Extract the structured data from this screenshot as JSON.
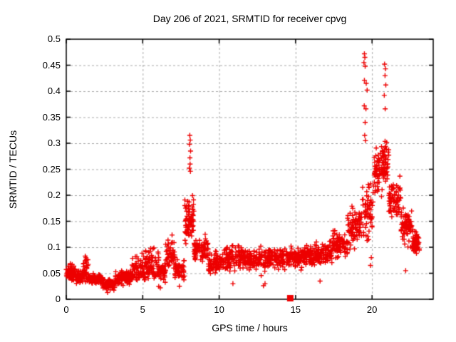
{
  "title": "Day 206 of 2021, SRMTID for receiver cpvg",
  "chart_data": {
    "type": "scatter",
    "title": "Day 206 of 2021, SRMTID for receiver cpvg",
    "xlabel": "GPS time / hours",
    "ylabel": "SRMTID / TECUs",
    "xlim": [
      0,
      24
    ],
    "ylim": [
      0,
      0.5
    ],
    "xticks": {
      "values": [
        0,
        5,
        10,
        15,
        20
      ],
      "labels": [
        "0",
        "5",
        "10",
        "15",
        "20"
      ]
    },
    "yticks": {
      "values": [
        0,
        0.05,
        0.1,
        0.15,
        0.2,
        0.25,
        0.3,
        0.35,
        0.4,
        0.45,
        0.5
      ],
      "labels": [
        "0",
        "0.05",
        "0.1",
        "0.15",
        "0.2",
        "0.25",
        "0.3",
        "0.35",
        "0.4",
        "0.45",
        "0.5"
      ]
    },
    "grid": true,
    "legend": "none",
    "marker": "plus",
    "marker_color": "#ed0000",
    "grid_color": "#a8a8a8",
    "border_color": "#000000",
    "series_name": "SRMTID",
    "cloud_segments": [
      {
        "x0": 0.0,
        "x1": 0.6,
        "n": 70,
        "yc": 0.05,
        "ys": 0.018,
        "ymin": 0.02,
        "ymax": 0.095
      },
      {
        "x0": 0.6,
        "x1": 1.1,
        "n": 50,
        "yc": 0.043,
        "ys": 0.013,
        "ymin": 0.02,
        "ymax": 0.08
      },
      {
        "x0": 1.1,
        "x1": 1.45,
        "n": 40,
        "yc": 0.058,
        "ys": 0.026,
        "ymin": 0.025,
        "ymax": 0.128
      },
      {
        "x0": 1.45,
        "x1": 2.4,
        "n": 85,
        "yc": 0.037,
        "ys": 0.011,
        "ymin": 0.015,
        "ymax": 0.07
      },
      {
        "x0": 2.4,
        "x1": 3.2,
        "n": 75,
        "yc": 0.028,
        "ys": 0.01,
        "ymin": 0.012,
        "ymax": 0.055
      },
      {
        "x0": 3.2,
        "x1": 4.3,
        "n": 95,
        "yc": 0.042,
        "ys": 0.014,
        "ymin": 0.018,
        "ymax": 0.09
      },
      {
        "x0": 4.3,
        "x1": 4.95,
        "n": 55,
        "yc": 0.058,
        "ys": 0.026,
        "ymin": 0.02,
        "ymax": 0.14
      },
      {
        "x0": 4.95,
        "x1": 5.45,
        "n": 48,
        "yc": 0.062,
        "ys": 0.032,
        "ymin": 0.02,
        "ymax": 0.168
      },
      {
        "x0": 5.45,
        "x1": 6.05,
        "n": 52,
        "yc": 0.068,
        "ys": 0.033,
        "ymin": 0.02,
        "ymax": 0.165
      },
      {
        "x0": 6.05,
        "x1": 6.5,
        "n": 40,
        "yc": 0.052,
        "ys": 0.02,
        "ymin": 0.02,
        "ymax": 0.12
      },
      {
        "x0": 6.5,
        "x1": 7.1,
        "n": 52,
        "yc": 0.09,
        "ys": 0.036,
        "ymin": 0.03,
        "ymax": 0.19
      },
      {
        "x0": 7.1,
        "x1": 7.75,
        "n": 52,
        "yc": 0.057,
        "ys": 0.023,
        "ymin": 0.022,
        "ymax": 0.125
      },
      {
        "x0": 7.75,
        "x1": 8.35,
        "n": 75,
        "yc": 0.15,
        "ys": 0.045,
        "ymin": 0.05,
        "ymax": 0.235
      },
      {
        "x0": 8.35,
        "x1": 9.3,
        "n": 85,
        "yc": 0.096,
        "ys": 0.026,
        "ymin": 0.04,
        "ymax": 0.16
      },
      {
        "x0": 9.3,
        "x1": 10.3,
        "n": 85,
        "yc": 0.07,
        "ys": 0.023,
        "ymin": 0.025,
        "ymax": 0.135
      },
      {
        "x0": 10.3,
        "x1": 11.5,
        "n": 105,
        "yc": 0.08,
        "ys": 0.023,
        "ymin": 0.03,
        "ymax": 0.148
      },
      {
        "x0": 11.5,
        "x1": 13.0,
        "n": 125,
        "yc": 0.075,
        "ys": 0.024,
        "ymin": 0.02,
        "ymax": 0.14
      },
      {
        "x0": 13.0,
        "x1": 14.6,
        "n": 135,
        "yc": 0.079,
        "ys": 0.02,
        "ymin": 0.035,
        "ymax": 0.13
      },
      {
        "x0": 14.6,
        "x1": 16.2,
        "n": 135,
        "yc": 0.082,
        "ys": 0.02,
        "ymin": 0.04,
        "ymax": 0.14
      },
      {
        "x0": 16.2,
        "x1": 17.4,
        "n": 100,
        "yc": 0.09,
        "ys": 0.023,
        "ymin": 0.04,
        "ymax": 0.16
      },
      {
        "x0": 17.4,
        "x1": 18.4,
        "n": 88,
        "yc": 0.105,
        "ys": 0.028,
        "ymin": 0.05,
        "ymax": 0.175
      },
      {
        "x0": 18.4,
        "x1": 19.35,
        "n": 82,
        "yc": 0.14,
        "ys": 0.035,
        "ymin": 0.06,
        "ymax": 0.215
      },
      {
        "x0": 19.35,
        "x1": 20.1,
        "n": 62,
        "yc": 0.17,
        "ys": 0.055,
        "ymin": 0.05,
        "ymax": 0.33
      },
      {
        "x0": 20.1,
        "x1": 21.1,
        "n": 115,
        "yc": 0.25,
        "ys": 0.047,
        "ymin": 0.13,
        "ymax": 0.35
      },
      {
        "x0": 21.1,
        "x1": 21.9,
        "n": 82,
        "yc": 0.19,
        "ys": 0.04,
        "ymin": 0.095,
        "ymax": 0.3
      },
      {
        "x0": 21.9,
        "x1": 22.6,
        "n": 72,
        "yc": 0.14,
        "ys": 0.035,
        "ymin": 0.06,
        "ymax": 0.24
      },
      {
        "x0": 22.6,
        "x1": 23.1,
        "n": 58,
        "yc": 0.11,
        "ys": 0.026,
        "ymin": 0.05,
        "ymax": 0.17
      }
    ],
    "outlier_points": [
      [
        8.08,
        0.315
      ],
      [
        8.11,
        0.306
      ],
      [
        8.06,
        0.298
      ],
      [
        8.13,
        0.285
      ],
      [
        8.09,
        0.272
      ],
      [
        8.05,
        0.252
      ],
      [
        8.12,
        0.246
      ],
      [
        8.1,
        0.26
      ],
      [
        19.5,
        0.472
      ],
      [
        19.53,
        0.465
      ],
      [
        19.47,
        0.455
      ],
      [
        19.55,
        0.448
      ],
      [
        19.5,
        0.421
      ],
      [
        19.62,
        0.415
      ],
      [
        19.68,
        0.402
      ],
      [
        19.49,
        0.372
      ],
      [
        19.6,
        0.366
      ],
      [
        19.55,
        0.34
      ],
      [
        19.52,
        0.315
      ],
      [
        19.57,
        0.305
      ],
      [
        19.9,
        0.065
      ],
      [
        19.95,
        0.08
      ],
      [
        20.82,
        0.452
      ],
      [
        20.88,
        0.443
      ],
      [
        20.85,
        0.43
      ],
      [
        20.9,
        0.412
      ],
      [
        20.8,
        0.392
      ],
      [
        20.86,
        0.366
      ],
      [
        12.9,
        0.026
      ],
      [
        13.0,
        0.03
      ],
      [
        10.9,
        0.03
      ],
      [
        6.15,
        0.022
      ],
      [
        2.7,
        0.013
      ],
      [
        7.4,
        0.025
      ],
      [
        16.6,
        0.035
      ],
      [
        22.2,
        0.055
      ]
    ],
    "square_marker_point": [
      14.65,
      0.002
    ]
  }
}
